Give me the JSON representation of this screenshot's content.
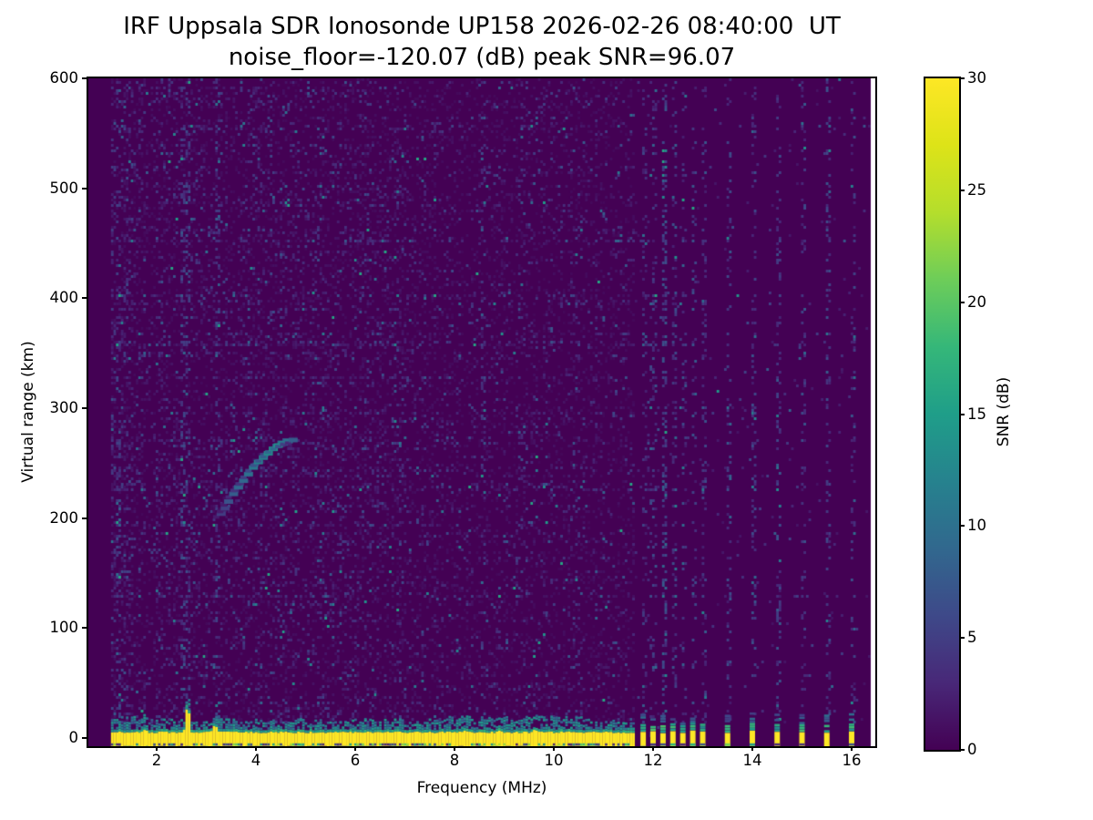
{
  "title": {
    "line1": "IRF Uppsala SDR Ionosonde UP158 2026-02-26 08:40:00  UT",
    "line2": "noise_floor=-120.07 (dB) peak SNR=96.07"
  },
  "axes": {
    "xlabel": "Frequency (MHz)",
    "ylabel": "Virtual range (km)",
    "x_ticks": [
      2,
      4,
      6,
      8,
      10,
      12,
      14,
      16
    ],
    "y_ticks": [
      0,
      100,
      200,
      300,
      400,
      500,
      600
    ],
    "xlim": [
      0.624,
      16.477
    ],
    "ylim": [
      -7.5,
      600
    ]
  },
  "colorbar": {
    "label": "SNR (dB)",
    "ticks": [
      0,
      5,
      10,
      15,
      20,
      25,
      30
    ],
    "vmin": 0,
    "vmax": 30
  },
  "chart_data": {
    "type": "heatmap",
    "description": "Ionogram: echo SNR (dB) versus sounding frequency (MHz) and virtual range (km)",
    "xlabel": "Frequency (MHz)",
    "ylabel": "Virtual range (km)",
    "xlim": [
      0.624,
      16.477
    ],
    "ylim": [
      -7.5,
      600
    ],
    "vmin": 0,
    "vmax": 30,
    "background_color": "#440154",
    "sweep": {
      "freq_start_mhz": 1.08,
      "continuous_end_mhz": 11.63,
      "freq_step_mhz": 0.05,
      "stepped_freqs_mhz": [
        11.8,
        12.0,
        12.2,
        12.4,
        12.6,
        12.8,
        13.0,
        13.5,
        14.0,
        14.5,
        15.0,
        15.5,
        16.0
      ]
    },
    "ground_pulse": {
      "snr_db": 30,
      "band_top_km": 5,
      "band_bottom_km": -7.5,
      "fuzz_snr_db": 15,
      "bumps": [
        [
          1.25,
          8
        ],
        [
          1.5,
          7
        ],
        [
          1.75,
          10
        ],
        [
          2.1,
          8
        ],
        [
          2.6,
          39
        ],
        [
          3.15,
          15
        ],
        [
          3.6,
          7
        ],
        [
          4.3,
          7
        ],
        [
          5.0,
          6
        ],
        [
          5.5,
          6
        ],
        [
          6.3,
          7
        ],
        [
          7.1,
          7
        ],
        [
          8.2,
          9
        ],
        [
          8.9,
          9
        ],
        [
          9.6,
          10
        ],
        [
          10.3,
          8
        ],
        [
          11.0,
          7
        ]
      ]
    },
    "ionospheric_echo_trace": {
      "comment": "faint oblique F-region echo, points = [freq_MHz, virtual_range_km, snr_dB]",
      "points": [
        [
          3.3,
          204,
          5
        ],
        [
          3.38,
          209,
          5
        ],
        [
          3.45,
          215,
          7
        ],
        [
          3.55,
          222,
          8
        ],
        [
          3.65,
          228,
          9
        ],
        [
          3.75,
          234,
          9
        ],
        [
          3.85,
          240,
          10
        ],
        [
          3.95,
          246,
          11
        ],
        [
          4.05,
          251,
          12
        ],
        [
          4.15,
          255,
          12
        ],
        [
          4.25,
          259,
          13
        ],
        [
          4.35,
          263,
          14
        ],
        [
          4.45,
          266,
          14
        ],
        [
          4.55,
          268,
          12
        ],
        [
          4.65,
          270,
          10
        ],
        [
          4.75,
          271,
          8
        ]
      ]
    },
    "interference_stripes": [
      [
        1.2,
        0.25
      ],
      [
        2.5,
        0.4
      ],
      [
        2.62,
        0.35
      ],
      [
        3.2,
        0.3
      ],
      [
        5.2,
        0.12
      ],
      [
        7.35,
        0.18
      ],
      [
        8.55,
        0.22
      ],
      [
        9.3,
        0.12
      ],
      [
        10.45,
        0.18
      ],
      [
        11.8,
        0.2
      ],
      [
        11.9,
        0.25
      ],
      [
        12.0,
        0.2
      ],
      [
        12.2,
        0.65
      ],
      [
        12.4,
        0.25
      ],
      [
        12.6,
        0.22
      ],
      [
        12.8,
        0.22
      ],
      [
        13.0,
        0.22
      ],
      [
        13.5,
        0.28
      ],
      [
        14.0,
        0.28
      ],
      [
        14.5,
        0.3
      ],
      [
        15.0,
        0.22
      ],
      [
        15.5,
        0.28
      ],
      [
        16.0,
        0.28
      ]
    ],
    "noise": {
      "speckle_density_low_band": 0.13,
      "speckle_density_high_band": 0.085,
      "speckle_density_inactive": 0.012,
      "typical_speckle_db": 3,
      "max_speckle_db": 16
    },
    "colormap": {
      "name": "viridis",
      "stops": [
        [
          0.0,
          "#440154"
        ],
        [
          0.1,
          "#482878"
        ],
        [
          0.2,
          "#3e4989"
        ],
        [
          0.3,
          "#31688e"
        ],
        [
          0.4,
          "#26828e"
        ],
        [
          0.5,
          "#1f9e89"
        ],
        [
          0.6,
          "#35b779"
        ],
        [
          0.7,
          "#6dcd59"
        ],
        [
          0.8,
          "#b4de2c"
        ],
        [
          0.9,
          "#dde318"
        ],
        [
          1.0,
          "#fde725"
        ]
      ]
    }
  }
}
